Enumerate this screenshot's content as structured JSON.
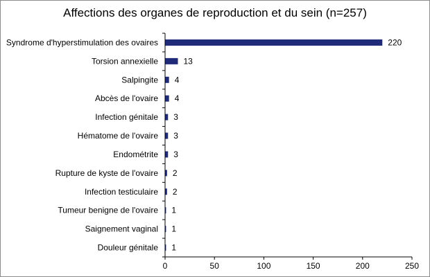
{
  "chart_data": {
    "type": "bar",
    "orientation": "horizontal",
    "title": "Affections des organes de reproduction et du sein (n=257)",
    "categories": [
      "Syndrome d'hyperstimulation des ovaires",
      "Torsion annexielle",
      "Salpingite",
      "Abcès de l'ovaire",
      "Infection génitale",
      "Hématome de l'ovaire",
      "Endométrite",
      "Rupture de kyste de l'ovaire",
      "Infection testiculaire",
      "Tumeur benigne de l'ovaire",
      "Saignement vaginal",
      "Douleur génitale"
    ],
    "values": [
      220,
      13,
      4,
      4,
      3,
      3,
      3,
      2,
      2,
      1,
      1,
      1
    ],
    "data_labels": [
      "220",
      "13",
      "4",
      "4",
      "3",
      "3",
      "3",
      "2",
      "2",
      "1",
      "1",
      "1"
    ],
    "xlim": [
      0,
      250
    ],
    "xticks": [
      "0",
      "50",
      "100",
      "150",
      "200",
      "250"
    ],
    "grid": false,
    "legend": "none",
    "bar_color": "#1f2a78"
  }
}
